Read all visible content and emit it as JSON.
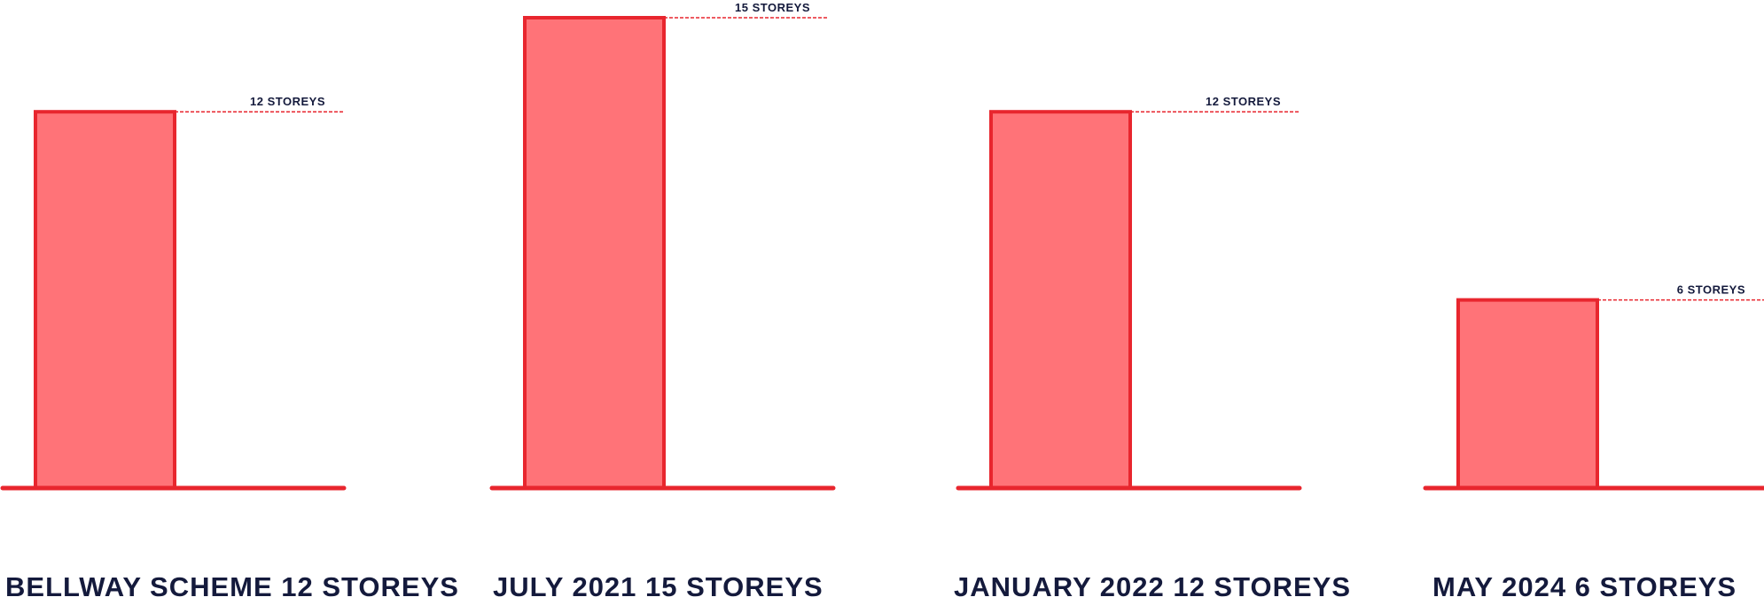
{
  "chart_data": {
    "type": "bar",
    "title": "",
    "xlabel": "",
    "ylabel": "",
    "categories": [
      "BELLWAY SCHEME 12 STOREYS",
      "JULY 2021 15 STOREYS",
      "JANUARY 2022 12 STOREYS",
      "MAY 2024 6 STOREYS"
    ],
    "values": [
      12,
      15,
      12,
      6
    ],
    "data_labels": [
      "12 STOREYS",
      "15 STOREYS",
      "12 STOREYS",
      "6 STOREYS"
    ],
    "ylim": [
      0,
      15
    ],
    "grid": false,
    "legend": "none",
    "colors": {
      "bar_fill": "#ff7378",
      "bar_stroke": "#e8262e",
      "text": "#141a3c"
    }
  }
}
